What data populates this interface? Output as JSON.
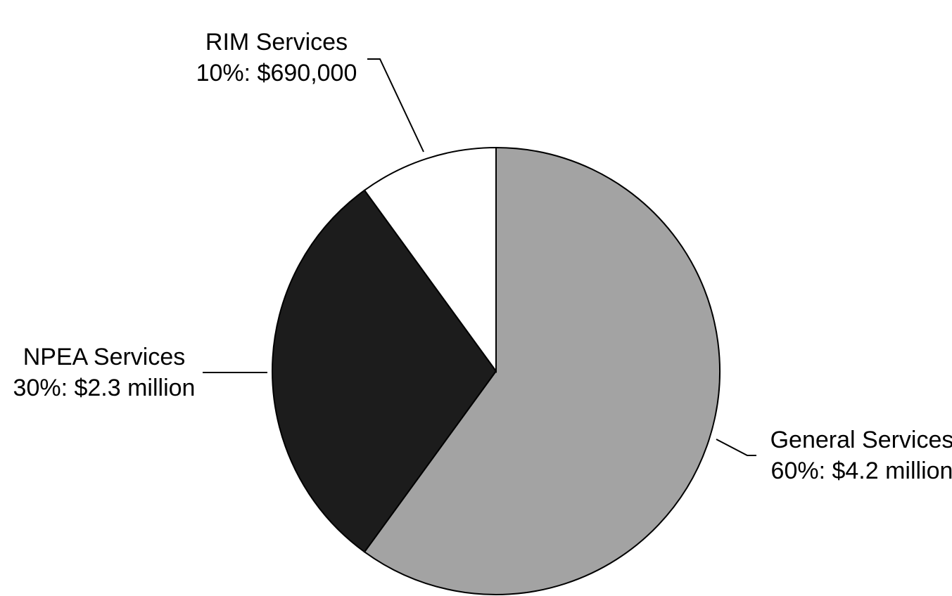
{
  "chart_data": {
    "type": "pie",
    "categories": [
      "General Services",
      "NPEA Services",
      "RIM Services"
    ],
    "values": [
      60,
      30,
      10
    ],
    "value_labels": [
      "60%: $4.2 million",
      "30%: $2.3 million",
      "10%: $690,000"
    ],
    "colors": [
      "#a3a3a3",
      "#1c1c1c",
      "#ffffff"
    ]
  }
}
